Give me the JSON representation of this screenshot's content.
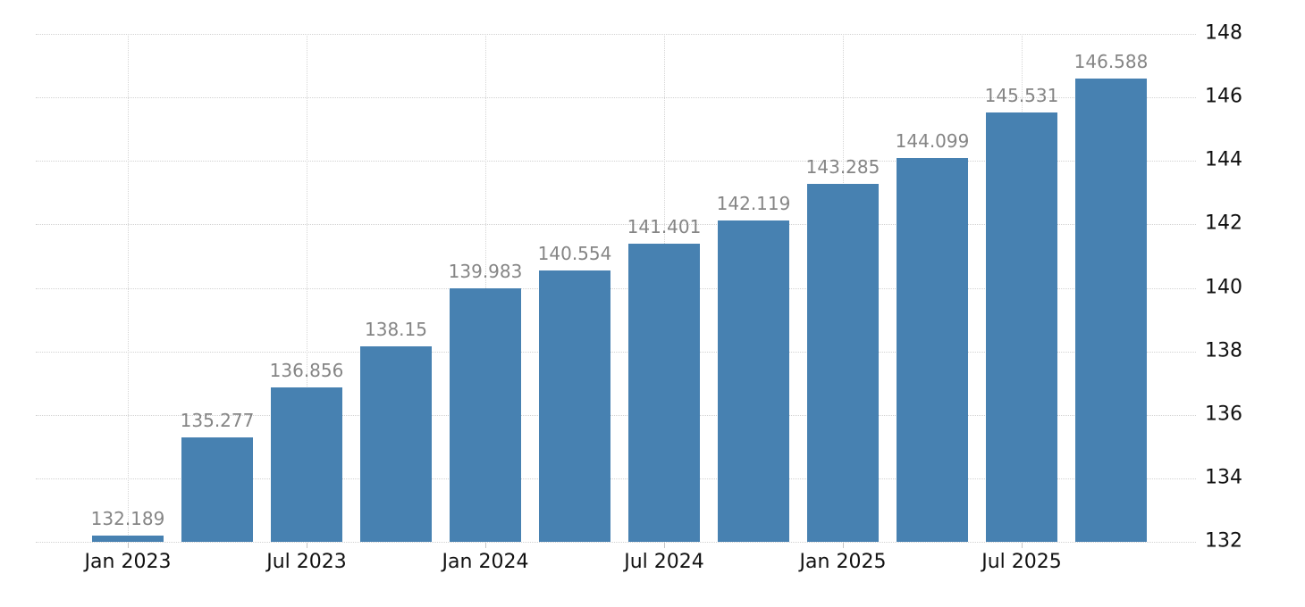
{
  "chart_data": {
    "type": "bar",
    "title": "",
    "xlabel": "",
    "ylabel": "",
    "values": [
      132.189,
      135.277,
      136.856,
      138.15,
      139.983,
      140.554,
      141.401,
      142.119,
      143.285,
      144.099,
      145.531,
      146.588
    ],
    "value_labels": [
      "132.189",
      "135.277",
      "136.856",
      "138.15",
      "139.983",
      "140.554",
      "141.401",
      "142.119",
      "143.285",
      "144.099",
      "145.531",
      "146.588"
    ],
    "x_tick_labels": [
      "Jan 2023",
      "Jul 2023",
      "Jan 2024",
      "Jul 2024",
      "Jan 2025",
      "Jul 2025"
    ],
    "x_tick_every": 2,
    "x_tick_start_index": 0,
    "y_ticks": [
      148,
      146,
      144,
      142,
      140,
      138,
      136,
      134,
      132
    ],
    "ylim": [
      132,
      148
    ],
    "y_axis_side": "right",
    "grid": "dotted",
    "legend": "none",
    "colors": {
      "bar": "#4781B1",
      "value_label": "#858585",
      "axis_label": "#111111",
      "gridline": "#d2d2d2",
      "background": "#ffffff"
    }
  }
}
